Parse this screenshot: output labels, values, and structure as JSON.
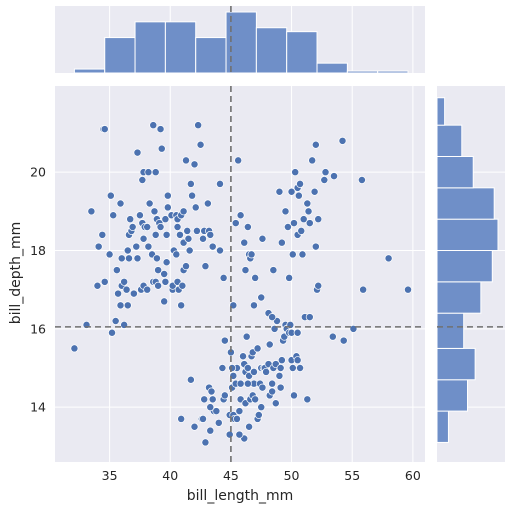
{
  "chart_data": {
    "type": "scatter",
    "title": "",
    "xlabel": "bill_length_mm",
    "ylabel": "bill_depth_mm",
    "xlim": [
      30.5,
      61
    ],
    "ylim": [
      12.6,
      22.2
    ],
    "x_ticks": [
      35,
      40,
      45,
      50,
      55,
      60
    ],
    "y_ticks": [
      14,
      16,
      18,
      20
    ],
    "grid": true,
    "colors": {
      "background": "#eaeaf2",
      "grid": "#ffffff",
      "marker": "#4c72b0",
      "histogram": "#6f8fc8",
      "reference_line": "#707070"
    },
    "reference_lines": {
      "x": 45,
      "y": 16.05
    },
    "points": [
      [
        32.1,
        15.5
      ],
      [
        33.1,
        16.1
      ],
      [
        33.5,
        19.0
      ],
      [
        34.0,
        17.1
      ],
      [
        34.1,
        18.1
      ],
      [
        34.4,
        18.4
      ],
      [
        34.5,
        21.1
      ],
      [
        34.6,
        17.2
      ],
      [
        34.6,
        21.1
      ],
      [
        35.0,
        17.9
      ],
      [
        35.1,
        19.4
      ],
      [
        35.2,
        15.9
      ],
      [
        35.3,
        18.9
      ],
      [
        35.5,
        16.2
      ],
      [
        35.6,
        17.5
      ],
      [
        35.7,
        16.9
      ],
      [
        35.9,
        16.6
      ],
      [
        35.9,
        19.2
      ],
      [
        36.0,
        17.1
      ],
      [
        36.0,
        17.8
      ],
      [
        36.2,
        16.1
      ],
      [
        36.2,
        17.2
      ],
      [
        36.4,
        17.0
      ],
      [
        36.5,
        16.6
      ],
      [
        36.5,
        18.0
      ],
      [
        36.6,
        17.8
      ],
      [
        36.6,
        18.4
      ],
      [
        36.7,
        18.8
      ],
      [
        36.8,
        18.5
      ],
      [
        36.9,
        18.6
      ],
      [
        37.0,
        16.9
      ],
      [
        37.2,
        18.1
      ],
      [
        37.3,
        17.8
      ],
      [
        37.3,
        20.5
      ],
      [
        37.5,
        18.9
      ],
      [
        37.6,
        17.0
      ],
      [
        37.7,
        18.7
      ],
      [
        37.7,
        19.8
      ],
      [
        37.8,
        17.1
      ],
      [
        37.8,
        18.3
      ],
      [
        37.8,
        20.0
      ],
      [
        37.9,
        18.6
      ],
      [
        38.1,
        17.0
      ],
      [
        38.1,
        18.6
      ],
      [
        38.2,
        18.1
      ],
      [
        38.2,
        20.0
      ],
      [
        38.3,
        19.2
      ],
      [
        38.5,
        17.9
      ],
      [
        38.6,
        17.2
      ],
      [
        38.6,
        21.2
      ],
      [
        38.7,
        19.0
      ],
      [
        38.8,
        17.2
      ],
      [
        38.8,
        18.4
      ],
      [
        38.8,
        20.0
      ],
      [
        38.9,
        17.8
      ],
      [
        38.9,
        18.8
      ],
      [
        39.0,
        17.1
      ],
      [
        39.0,
        17.5
      ],
      [
        39.1,
        18.7
      ],
      [
        39.2,
        18.6
      ],
      [
        39.2,
        21.1
      ],
      [
        39.3,
        20.6
      ],
      [
        39.5,
        16.7
      ],
      [
        39.5,
        17.4
      ],
      [
        39.6,
        17.2
      ],
      [
        39.6,
        18.8
      ],
      [
        39.7,
        17.7
      ],
      [
        39.7,
        18.4
      ],
      [
        39.8,
        19.1
      ],
      [
        39.8,
        19.4
      ],
      [
        40.1,
        18.9
      ],
      [
        40.2,
        17.0
      ],
      [
        40.2,
        17.1
      ],
      [
        40.3,
        18.0
      ],
      [
        40.5,
        17.9
      ],
      [
        40.5,
        18.9
      ],
      [
        40.6,
        17.2
      ],
      [
        40.6,
        18.8
      ],
      [
        40.6,
        18.6
      ],
      [
        40.7,
        17.0
      ],
      [
        40.8,
        18.4
      ],
      [
        40.9,
        16.6
      ],
      [
        40.9,
        18.9
      ],
      [
        41.0,
        17.1
      ],
      [
        41.1,
        17.5
      ],
      [
        41.1,
        18.2
      ],
      [
        41.1,
        19.0
      ],
      [
        41.3,
        17.6
      ],
      [
        41.3,
        20.3
      ],
      [
        41.4,
        18.5
      ],
      [
        41.5,
        18.3
      ],
      [
        41.6,
        18.0
      ],
      [
        41.7,
        19.7
      ],
      [
        41.8,
        19.4
      ],
      [
        42.0,
        20.2
      ],
      [
        42.1,
        19.1
      ],
      [
        42.2,
        18.5
      ],
      [
        42.3,
        21.2
      ],
      [
        42.5,
        20.7
      ],
      [
        42.7,
        18.3
      ],
      [
        42.8,
        18.5
      ],
      [
        42.9,
        17.6
      ],
      [
        43.1,
        19.2
      ],
      [
        43.2,
        18.5
      ],
      [
        43.3,
        18.4
      ],
      [
        43.5,
        18.1
      ],
      [
        44.1,
        18.0
      ],
      [
        44.1,
        19.7
      ],
      [
        44.4,
        17.3
      ],
      [
        44.5,
        15.7
      ],
      [
        44.9,
        13.3
      ],
      [
        45.2,
        16.6
      ],
      [
        45.4,
        18.7
      ],
      [
        45.6,
        20.3
      ],
      [
        45.8,
        18.9
      ],
      [
        46.0,
        15.3
      ],
      [
        46.1,
        18.2
      ],
      [
        46.2,
        17.5
      ],
      [
        46.4,
        18.6
      ],
      [
        46.5,
        17.9
      ],
      [
        46.6,
        17.8
      ],
      [
        46.7,
        17.9
      ],
      [
        46.9,
        16.6
      ],
      [
        47.0,
        17.3
      ],
      [
        47.5,
        16.8
      ],
      [
        47.6,
        18.3
      ],
      [
        48.1,
        16.4
      ],
      [
        48.5,
        17.5
      ],
      [
        49.0,
        19.5
      ],
      [
        49.2,
        18.2
      ],
      [
        49.5,
        19.0
      ],
      [
        49.7,
        18.6
      ],
      [
        49.8,
        17.3
      ],
      [
        50.0,
        19.5
      ],
      [
        50.1,
        17.9
      ],
      [
        50.2,
        18.7
      ],
      [
        50.3,
        20.0
      ],
      [
        50.5,
        19.6
      ],
      [
        50.5,
        18.4
      ],
      [
        50.6,
        19.4
      ],
      [
        50.7,
        19.7
      ],
      [
        50.8,
        18.5
      ],
      [
        50.9,
        17.9
      ],
      [
        51.0,
        18.8
      ],
      [
        51.3,
        19.2
      ],
      [
        51.4,
        19.0
      ],
      [
        51.5,
        18.7
      ],
      [
        51.7,
        20.3
      ],
      [
        51.9,
        19.5
      ],
      [
        52.0,
        18.1
      ],
      [
        52.0,
        20.7
      ],
      [
        52.2,
        18.8
      ],
      [
        52.7,
        19.8
      ],
      [
        52.8,
        20.0
      ],
      [
        53.5,
        19.9
      ],
      [
        54.2,
        20.8
      ],
      [
        55.8,
        19.8
      ],
      [
        58.0,
        17.8
      ],
      [
        40.9,
        13.7
      ],
      [
        41.7,
        14.7
      ],
      [
        42.0,
        13.5
      ],
      [
        42.6,
        13.7
      ],
      [
        42.7,
        13.7
      ],
      [
        42.8,
        14.2
      ],
      [
        42.9,
        13.1
      ],
      [
        43.2,
        14.5
      ],
      [
        43.3,
        13.4
      ],
      [
        43.4,
        14.4
      ],
      [
        43.5,
        14.2
      ],
      [
        43.6,
        13.9
      ],
      [
        43.8,
        13.9
      ],
      [
        44.0,
        13.6
      ],
      [
        44.4,
        14.2
      ],
      [
        44.5,
        14.3
      ],
      [
        44.9,
        13.8
      ],
      [
        45.0,
        15.4
      ],
      [
        45.1,
        14.5
      ],
      [
        45.2,
        13.8
      ],
      [
        45.2,
        14.8
      ],
      [
        45.3,
        13.7
      ],
      [
        45.4,
        14.6
      ],
      [
        45.5,
        13.7
      ],
      [
        45.5,
        15.0
      ],
      [
        45.7,
        13.9
      ],
      [
        45.8,
        14.2
      ],
      [
        45.8,
        14.6
      ],
      [
        46.1,
        13.2
      ],
      [
        46.1,
        15.1
      ],
      [
        46.2,
        14.1
      ],
      [
        46.2,
        14.9
      ],
      [
        46.3,
        15.8
      ],
      [
        46.4,
        15.0
      ],
      [
        46.5,
        13.5
      ],
      [
        46.5,
        14.8
      ],
      [
        46.6,
        14.2
      ],
      [
        46.7,
        15.3
      ],
      [
        46.8,
        14.3
      ],
      [
        46.8,
        15.4
      ],
      [
        46.9,
        14.6
      ],
      [
        47.2,
        13.7
      ],
      [
        47.2,
        15.5
      ],
      [
        47.3,
        13.8
      ],
      [
        47.4,
        14.6
      ],
      [
        47.5,
        14.0
      ],
      [
        47.5,
        15.0
      ],
      [
        47.6,
        14.5
      ],
      [
        47.7,
        15.0
      ],
      [
        47.8,
        15.0
      ],
      [
        48.1,
        15.1
      ],
      [
        48.2,
        14.3
      ],
      [
        48.2,
        15.6
      ],
      [
        48.4,
        14.4
      ],
      [
        48.4,
        14.6
      ],
      [
        48.5,
        15.0
      ],
      [
        48.6,
        16.0
      ],
      [
        48.7,
        14.1
      ],
      [
        48.7,
        15.1
      ],
      [
        48.8,
        16.2
      ],
      [
        49.1,
        14.5
      ],
      [
        49.1,
        15.0
      ],
      [
        49.2,
        15.2
      ],
      [
        49.3,
        15.7
      ],
      [
        49.4,
        15.8
      ],
      [
        49.5,
        16.1
      ],
      [
        49.6,
        16.0
      ],
      [
        49.8,
        15.9
      ],
      [
        49.9,
        16.1
      ],
      [
        50.0,
        15.2
      ],
      [
        50.0,
        15.9
      ],
      [
        50.1,
        15.0
      ],
      [
        50.2,
        14.3
      ],
      [
        50.4,
        15.3
      ],
      [
        50.5,
        15.2
      ],
      [
        50.5,
        15.9
      ],
      [
        50.7,
        15.0
      ],
      [
        51.1,
        16.3
      ],
      [
        51.3,
        14.2
      ],
      [
        51.5,
        16.3
      ],
      [
        52.1,
        17.0
      ],
      [
        52.2,
        17.1
      ],
      [
        53.4,
        15.8
      ],
      [
        54.3,
        15.7
      ],
      [
        55.1,
        16.0
      ],
      [
        55.9,
        17.0
      ],
      [
        59.6,
        17.0
      ],
      [
        43.3,
        14.0
      ],
      [
        45.1,
        15.0
      ],
      [
        46.4,
        14.6
      ],
      [
        47.0,
        14.2
      ],
      [
        49.0,
        14.8
      ],
      [
        45.7,
        13.3
      ],
      [
        44.3,
        15.0
      ],
      [
        48.4,
        16.3
      ],
      [
        46.9,
        14.9
      ],
      [
        47.9,
        14.9
      ]
    ],
    "x_hist": {
      "bins": [
        [
          32.1,
          34.6,
          2
        ],
        [
          34.6,
          37.1,
          18
        ],
        [
          37.1,
          39.6,
          26
        ],
        [
          39.6,
          42.1,
          26
        ],
        [
          42.1,
          44.6,
          18
        ],
        [
          44.6,
          47.1,
          31
        ],
        [
          47.1,
          49.6,
          23
        ],
        [
          49.6,
          52.1,
          21
        ],
        [
          52.1,
          54.6,
          5
        ],
        [
          54.6,
          57.1,
          1
        ],
        [
          57.1,
          59.6,
          1
        ]
      ]
    },
    "y_hist": {
      "bins": [
        [
          13.1,
          13.9,
          6
        ],
        [
          13.9,
          14.7,
          16
        ],
        [
          14.7,
          15.5,
          20
        ],
        [
          15.5,
          16.4,
          14
        ],
        [
          16.4,
          17.2,
          23
        ],
        [
          17.2,
          18.0,
          29
        ],
        [
          18.0,
          18.8,
          32
        ],
        [
          18.8,
          19.6,
          30
        ],
        [
          19.6,
          20.4,
          19
        ],
        [
          20.4,
          21.2,
          13
        ],
        [
          21.2,
          21.9,
          4
        ]
      ]
    }
  }
}
